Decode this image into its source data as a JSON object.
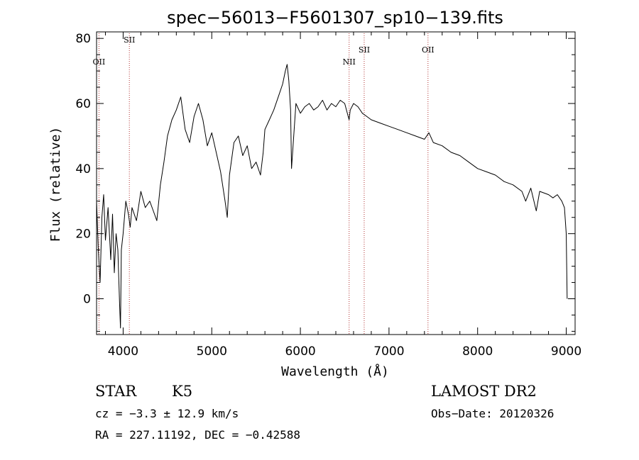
{
  "chart_data": {
    "type": "line",
    "title": "spec−56013−F5601307_sp10−139.fits",
    "xlabel": "Wavelength (Å)",
    "ylabel": "Flux (relative)",
    "xlim": [
      3700,
      9100
    ],
    "ylim": [
      -11,
      82
    ],
    "xticks": [
      4000,
      5000,
      6000,
      7000,
      8000,
      9000
    ],
    "yticks": [
      0,
      20,
      40,
      60,
      80
    ],
    "grid": false,
    "series": [
      {
        "x": [
          3700,
          3720,
          3740,
          3760,
          3780,
          3800,
          3830,
          3860,
          3880,
          3900,
          3920,
          3940,
          3960,
          3970,
          3980,
          4000,
          4030,
          4060,
          4080,
          4100,
          4150,
          4200,
          4250,
          4300,
          4340,
          4380,
          4420,
          4460,
          4500,
          4550,
          4600,
          4650,
          4700,
          4750,
          4800,
          4850,
          4900,
          4950,
          5000,
          5050,
          5100,
          5150,
          5175,
          5200,
          5250,
          5300,
          5350,
          5400,
          5450,
          5500,
          5550,
          5580,
          5600,
          5650,
          5700,
          5750,
          5800,
          5830,
          5850,
          5870,
          5890,
          5900,
          5950,
          6000,
          6050,
          6100,
          6150,
          6200,
          6250,
          6300,
          6350,
          6400,
          6450,
          6500,
          6550,
          6563,
          6600,
          6650,
          6700,
          6750,
          6800,
          6900,
          7000,
          7100,
          7200,
          7300,
          7400,
          7450,
          7500,
          7600,
          7700,
          7800,
          7900,
          8000,
          8100,
          8200,
          8300,
          8400,
          8500,
          8542,
          8600,
          8662,
          8700,
          8800,
          8850,
          8900,
          8950,
          8980,
          9000,
          9010
        ],
        "values": [
          30,
          15,
          5,
          25,
          32,
          18,
          28,
          12,
          26,
          8,
          20,
          15,
          -2,
          -9,
          15,
          20,
          30,
          26,
          22,
          28,
          24,
          33,
          28,
          30,
          27,
          24,
          35,
          42,
          50,
          55,
          58,
          62,
          52,
          48,
          56,
          60,
          55,
          47,
          51,
          45,
          39,
          30,
          25,
          38,
          48,
          50,
          44,
          47,
          40,
          42,
          38,
          45,
          52,
          55,
          58,
          62,
          66,
          70,
          72,
          67,
          58,
          40,
          60,
          57,
          59,
          60,
          58,
          59,
          61,
          58,
          60,
          59,
          61,
          60,
          55,
          58,
          60,
          59,
          57,
          56,
          55,
          54,
          53,
          52,
          51,
          50,
          49,
          51,
          48,
          47,
          45,
          44,
          42,
          40,
          39,
          38,
          36,
          35,
          33,
          30,
          34,
          27,
          33,
          32,
          31,
          32,
          30,
          28,
          20,
          0
        ],
        "name": ""
      }
    ],
    "line_markers": [
      {
        "label": "OII",
        "x": 3727
      },
      {
        "label": "SII",
        "x": 4070
      },
      {
        "label": "NII",
        "x": 6550
      },
      {
        "label": "SII",
        "x": 6720
      },
      {
        "label": "OII",
        "x": 7440
      }
    ]
  },
  "info": {
    "object_class": "STAR",
    "subclass": "K5",
    "survey": "LAMOST DR2",
    "cz": "cz = −3.3 ± 12.9 km/s",
    "obs_date": "Obs−Date: 20120326",
    "coords": "RA = 227.11192, DEC =  −0.42588"
  }
}
